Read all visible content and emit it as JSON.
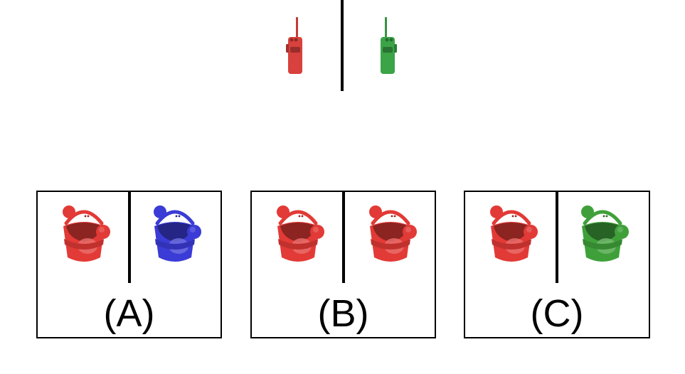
{
  "prompt": {
    "left_item": {
      "icon": "walkie-talkie-icon",
      "color": "#d8413d"
    },
    "right_item": {
      "icon": "walkie-talkie-icon",
      "color": "#3aa447"
    }
  },
  "options": [
    {
      "label": "(A)",
      "left_item": {
        "icon": "bucket-icon",
        "color": "#e23a36"
      },
      "right_item": {
        "icon": "bucket-icon",
        "color": "#3b3bd6"
      }
    },
    {
      "label": "(B)",
      "left_item": {
        "icon": "bucket-icon",
        "color": "#e23a36"
      },
      "right_item": {
        "icon": "bucket-icon",
        "color": "#e23a36"
      }
    },
    {
      "label": "(C)",
      "left_item": {
        "icon": "bucket-icon",
        "color": "#e23a36"
      },
      "right_item": {
        "icon": "bucket-icon",
        "color": "#3fa03a"
      }
    }
  ]
}
